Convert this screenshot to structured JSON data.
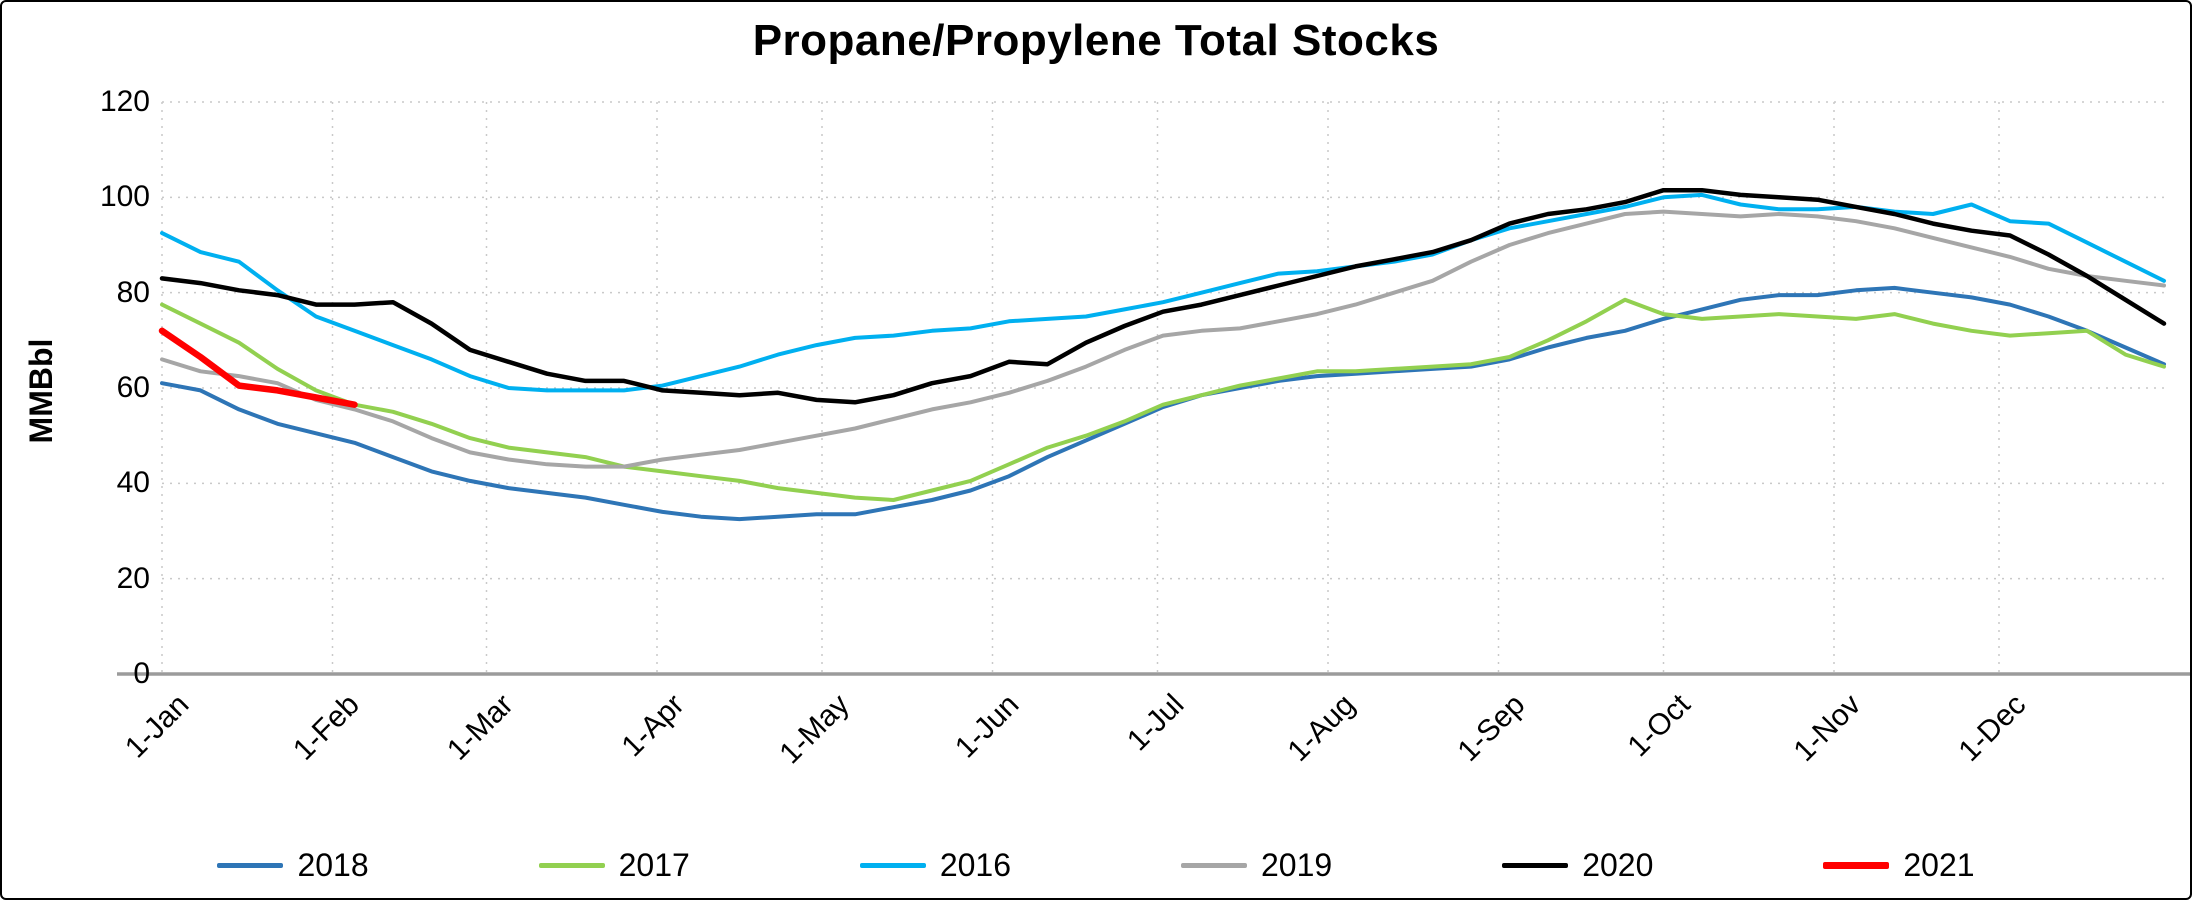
{
  "title": "Propane/Propylene Total Stocks",
  "y_axis": {
    "label": "MMBbl",
    "ticks": [
      0,
      20,
      40,
      60,
      80,
      100,
      120
    ],
    "min": 0,
    "max": 120
  },
  "x_axis": {
    "ticks": [
      "1-Jan",
      "1-Feb",
      "1-Mar",
      "1-Apr",
      "1-May",
      "1-Jun",
      "1-Jul",
      "1-Aug",
      "1-Sep",
      "1-Oct",
      "1-Nov",
      "1-Dec"
    ],
    "tick_days": [
      0,
      31,
      59,
      90,
      120,
      151,
      181,
      212,
      243,
      273,
      304,
      334
    ],
    "days_total": 364
  },
  "legend": [
    {
      "label": "2018",
      "color": "#2e75b6"
    },
    {
      "label": "2017",
      "color": "#92d050"
    },
    {
      "label": "2016",
      "color": "#00b0f0"
    },
    {
      "label": "2019",
      "color": "#a6a6a6"
    },
    {
      "label": "2020",
      "color": "#000000"
    },
    {
      "label": "2021",
      "color": "#ff0000"
    }
  ],
  "chart_data": {
    "type": "line",
    "title": "Propane/Propylene Total Stocks",
    "xlabel": "",
    "ylabel": "MMBbl",
    "ylim": [
      0,
      120
    ],
    "x_interval": "weekly",
    "grid": true,
    "grid_style": "dotted",
    "legend_position": "bottom",
    "series": [
      {
        "name": "2018",
        "color": "#2e75b6",
        "stroke_width": 4,
        "values": [
          61,
          59.5,
          55.5,
          52.5,
          50.5,
          48.5,
          45.5,
          42.5,
          40.5,
          39,
          38,
          37,
          35.5,
          34,
          33,
          32.5,
          33,
          33.5,
          33.5,
          35,
          36.5,
          38.5,
          41.5,
          45.5,
          49,
          52.5,
          56,
          58.5,
          60,
          61.5,
          62.5,
          63,
          63.5,
          64,
          64.5,
          66,
          68.5,
          70.5,
          72,
          74.5,
          76.5,
          78.5,
          79.5,
          79.5,
          80.5,
          81,
          80,
          79,
          77.5,
          75,
          72,
          68.5,
          65
        ]
      },
      {
        "name": "2017",
        "color": "#92d050",
        "stroke_width": 4,
        "values": [
          77.5,
          73.5,
          69.5,
          64,
          59.5,
          56.5,
          55,
          52.5,
          49.5,
          47.5,
          46.5,
          45.5,
          43.5,
          42.5,
          41.5,
          40.5,
          39,
          38,
          37,
          36.5,
          38.5,
          40.5,
          44,
          47.5,
          50,
          53,
          56.5,
          58.5,
          60.5,
          62,
          63.5,
          63.5,
          64,
          64.5,
          65,
          66.5,
          70,
          74,
          78.5,
          75.5,
          74.5,
          75,
          75.5,
          75,
          74.5,
          75.5,
          73.5,
          72,
          71,
          71.5,
          72,
          67,
          64.5
        ]
      },
      {
        "name": "2016",
        "color": "#00b0f0",
        "stroke_width": 4,
        "values": [
          92.5,
          88.5,
          86.5,
          80.5,
          75,
          72,
          69,
          66,
          62.5,
          60,
          59.5,
          59.5,
          59.5,
          60.5,
          62.5,
          64.5,
          67,
          69,
          70.5,
          71,
          72,
          72.5,
          74,
          74.5,
          75,
          76.5,
          78,
          80,
          82,
          84,
          84.5,
          85.5,
          86.5,
          88,
          91,
          93.5,
          95,
          96.5,
          98,
          100,
          100.5,
          98.5,
          97.5,
          97.5,
          98,
          97,
          96.5,
          98.5,
          95,
          94.5,
          90.5,
          86.5,
          82.5
        ]
      },
      {
        "name": "2019",
        "color": "#a6a6a6",
        "stroke_width": 4,
        "values": [
          66,
          63.5,
          62.5,
          61,
          57.5,
          55.5,
          53,
          49.5,
          46.5,
          45,
          44,
          43.5,
          43.5,
          45,
          46,
          47,
          48.5,
          50,
          51.5,
          53.5,
          55.5,
          57,
          59,
          61.5,
          64.5,
          68,
          71,
          72,
          72.5,
          74,
          75.5,
          77.5,
          80,
          82.5,
          86.5,
          90,
          92.5,
          94.5,
          96.5,
          97,
          96.5,
          96,
          96.5,
          96,
          95,
          93.5,
          91.5,
          89.5,
          87.5,
          85,
          83.5,
          82.5,
          81.5
        ]
      },
      {
        "name": "2020",
        "color": "#000000",
        "stroke_width": 4.5,
        "values": [
          83,
          82,
          80.5,
          79.5,
          77.5,
          77.5,
          78,
          73.5,
          68,
          65.5,
          63,
          61.5,
          61.5,
          59.5,
          59,
          58.5,
          59,
          57.5,
          57,
          58.5,
          61,
          62.5,
          65.5,
          65,
          69.5,
          73,
          76,
          77.5,
          79.5,
          81.5,
          83.5,
          85.5,
          87,
          88.5,
          91,
          94.5,
          96.5,
          97.5,
          99,
          101.5,
          101.5,
          100.5,
          100,
          99.5,
          98,
          96.5,
          94.5,
          93,
          92,
          88,
          83.5,
          78.5,
          73.5
        ]
      },
      {
        "name": "2021",
        "color": "#ff0000",
        "stroke_width": 6.5,
        "values": [
          72,
          66.5,
          60.5,
          59.5,
          58,
          56.5
        ]
      }
    ]
  }
}
